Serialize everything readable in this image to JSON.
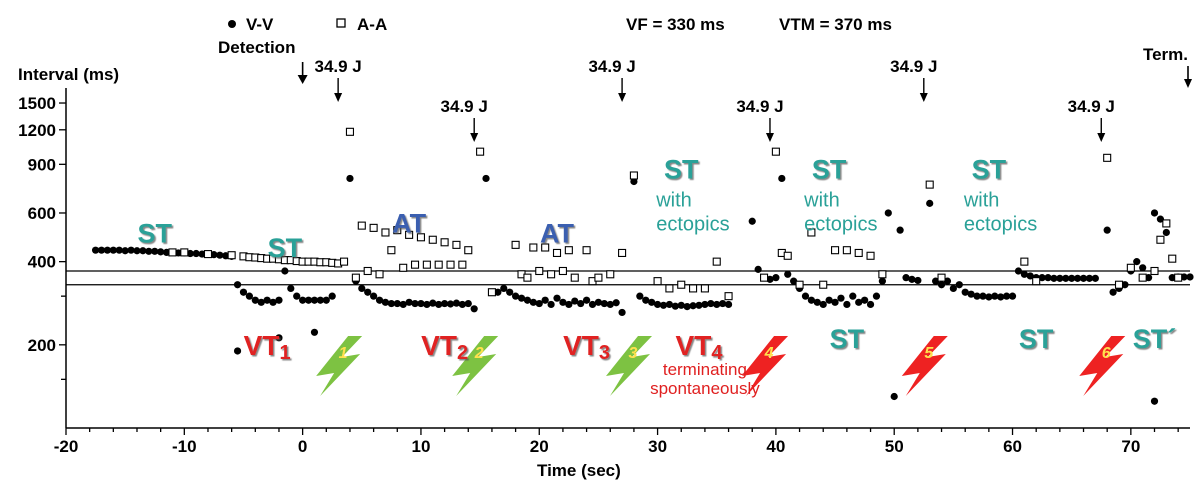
{
  "legend": {
    "vv": "V-V",
    "aa": "A-A",
    "detection": "Detection",
    "vf": "VF = 330 ms",
    "vtm": "VTM = 370 ms"
  },
  "chart_data": {
    "type": "scatter",
    "xlabel": "Time (sec)",
    "ylabel": "Interval (ms)",
    "xlim": [
      -20,
      75
    ],
    "ylim": [
      100,
      1700
    ],
    "y_scale": "log",
    "x_ticks": [
      -20,
      -10,
      0,
      10,
      20,
      30,
      40,
      50,
      60,
      70
    ],
    "y_ticks": [
      200,
      400,
      600,
      900,
      1200,
      1500
    ],
    "thresholds_ms": [
      330,
      370
    ],
    "term_label": "Term.",
    "shocks": [
      {
        "x": 3,
        "label": "34.9 J"
      },
      {
        "x": 14.5,
        "label": "34.9 J"
      },
      {
        "x": 27,
        "label": "34.9 J"
      },
      {
        "x": 39.5,
        "label": "34.9 J"
      },
      {
        "x": 52.5,
        "label": "34.9 J"
      },
      {
        "x": 67.5,
        "label": "34.9 J"
      }
    ],
    "rhythm_labels": [
      {
        "text": "ST",
        "x": -12.5,
        "y": 470,
        "color": "#2aa198"
      },
      {
        "text": "ST",
        "x": -1.5,
        "y": 415,
        "color": "#2aa198"
      },
      {
        "text": "AT",
        "x": 9,
        "y": 510,
        "color": "#3a5fb0"
      },
      {
        "text": "AT",
        "x": 21.5,
        "y": 470,
        "color": "#3a5fb0"
      },
      {
        "text": "ST",
        "x": 32,
        "y": 800,
        "color": "#2aa198"
      },
      {
        "text": "ST",
        "x": 44.5,
        "y": 800,
        "color": "#2aa198"
      },
      {
        "text": "ST",
        "x": 58,
        "y": 800,
        "color": "#2aa198"
      },
      {
        "text": "ST",
        "x": 46,
        "y": 195,
        "color": "#2aa198"
      },
      {
        "text": "ST",
        "x": 62,
        "y": 195,
        "color": "#2aa198"
      },
      {
        "text": "ST´",
        "x": 72,
        "y": 195,
        "color": "#2aa198"
      }
    ],
    "ectopic_labels": [
      {
        "x": 32,
        "lines": [
          "with",
          "ectopics"
        ]
      },
      {
        "x": 44.5,
        "lines": [
          "with",
          "ectopics"
        ]
      },
      {
        "x": 58,
        "lines": [
          "with",
          "ectopics"
        ]
      }
    ],
    "vt_labels": [
      {
        "text": "VT",
        "sub": "1",
        "x": -3
      },
      {
        "text": "VT",
        "sub": "2",
        "x": 12
      },
      {
        "text": "VT",
        "sub": "3",
        "x": 24
      },
      {
        "text": "VT",
        "sub": "4",
        "x": 33.5
      }
    ],
    "terminating_note": [
      "terminating",
      "spontaneously"
    ],
    "bolts": [
      {
        "x": 3,
        "label": "1",
        "color": "#7dc242"
      },
      {
        "x": 14.5,
        "label": "2",
        "color": "#7dc242"
      },
      {
        "x": 27.5,
        "label": "3",
        "color": "#7dc242"
      },
      {
        "x": 39,
        "label": "4",
        "color": "#ee2222"
      },
      {
        "x": 52.5,
        "label": "5",
        "color": "#ee2222"
      },
      {
        "x": 67.5,
        "label": "6",
        "color": "#ee2222"
      }
    ],
    "series": [
      {
        "name": "V-V",
        "marker": "filled-circle",
        "points": [
          [
            -17.5,
            440
          ],
          [
            -17,
            440
          ],
          [
            -16.5,
            440
          ],
          [
            -16,
            440
          ],
          [
            -15.5,
            440
          ],
          [
            -15,
            438
          ],
          [
            -14.5,
            440
          ],
          [
            -14,
            438
          ],
          [
            -13.5,
            438
          ],
          [
            -13,
            436
          ],
          [
            -12.5,
            436
          ],
          [
            -12,
            434
          ],
          [
            -11.5,
            432
          ],
          [
            -11,
            432
          ],
          [
            -10.5,
            430
          ],
          [
            -10,
            430
          ],
          [
            -9.5,
            428
          ],
          [
            -9,
            428
          ],
          [
            -8.5,
            426
          ],
          [
            -8,
            426
          ],
          [
            -7.5,
            424
          ],
          [
            -7,
            422
          ],
          [
            -6.5,
            420
          ],
          [
            -6,
            418
          ],
          [
            -5.5,
            330
          ],
          [
            -5,
            310
          ],
          [
            -4.5,
            300
          ],
          [
            -4,
            290
          ],
          [
            -3.5,
            285
          ],
          [
            -3,
            290
          ],
          [
            -2.5,
            285
          ],
          [
            -2,
            290
          ],
          [
            -1.5,
            370
          ],
          [
            -1,
            320
          ],
          [
            -0.5,
            300
          ],
          [
            0,
            290
          ],
          [
            0.5,
            290
          ],
          [
            1,
            290
          ],
          [
            1.5,
            290
          ],
          [
            2,
            290
          ],
          [
            2.5,
            300
          ],
          [
            -5.5,
            190
          ],
          [
            -2,
            212
          ],
          [
            1,
            222
          ],
          [
            4,
            800
          ],
          [
            4.5,
            340
          ],
          [
            5,
            320
          ],
          [
            5.5,
            310
          ],
          [
            6,
            300
          ],
          [
            6.5,
            290
          ],
          [
            7,
            285
          ],
          [
            7.5,
            282
          ],
          [
            8,
            282
          ],
          [
            8.5,
            280
          ],
          [
            9,
            285
          ],
          [
            9.5,
            282
          ],
          [
            10,
            282
          ],
          [
            10.5,
            280
          ],
          [
            11,
            283
          ],
          [
            11.5,
            280
          ],
          [
            12,
            282
          ],
          [
            12.5,
            281
          ],
          [
            13,
            283
          ],
          [
            13.5,
            280
          ],
          [
            14,
            282
          ],
          [
            14.5,
            270
          ],
          [
            15.5,
            800
          ],
          [
            16.5,
            310
          ],
          [
            17,
            320
          ],
          [
            17.5,
            310
          ],
          [
            18,
            300
          ],
          [
            18.5,
            295
          ],
          [
            19,
            290
          ],
          [
            19.5,
            285
          ],
          [
            20,
            282
          ],
          [
            20.5,
            290
          ],
          [
            21,
            280
          ],
          [
            21.5,
            295
          ],
          [
            22,
            285
          ],
          [
            22.5,
            280
          ],
          [
            23,
            288
          ],
          [
            23.5,
            282
          ],
          [
            24,
            290
          ],
          [
            24.5,
            280
          ],
          [
            25,
            285
          ],
          [
            25.5,
            282
          ],
          [
            26,
            280
          ],
          [
            26.5,
            284
          ],
          [
            27,
            262
          ],
          [
            28,
            780
          ],
          [
            28.5,
            300
          ],
          [
            29,
            290
          ],
          [
            29.5,
            285
          ],
          [
            30,
            280
          ],
          [
            30.5,
            278
          ],
          [
            31,
            280
          ],
          [
            31.5,
            276
          ],
          [
            32,
            278
          ],
          [
            32.5,
            275
          ],
          [
            33,
            277
          ],
          [
            33.5,
            278
          ],
          [
            34,
            280
          ],
          [
            34.5,
            282
          ],
          [
            35,
            280
          ],
          [
            35.5,
            282
          ],
          [
            36,
            280
          ],
          [
            38,
            560
          ],
          [
            38.5,
            375
          ],
          [
            39,
            350
          ],
          [
            39.5,
            345
          ],
          [
            40,
            350
          ],
          [
            40.5,
            800
          ],
          [
            41,
            360
          ],
          [
            41.5,
            340
          ],
          [
            42,
            320
          ],
          [
            42.5,
            300
          ],
          [
            43,
            290
          ],
          [
            43.5,
            285
          ],
          [
            44,
            280
          ],
          [
            44.5,
            290
          ],
          [
            45,
            285
          ],
          [
            45.5,
            295
          ],
          [
            46,
            280
          ],
          [
            46.5,
            300
          ],
          [
            47,
            285
          ],
          [
            47.5,
            290
          ],
          [
            48,
            280
          ],
          [
            48.5,
            300
          ],
          [
            49,
            340
          ],
          [
            49.5,
            600
          ],
          [
            50,
            130
          ],
          [
            50.5,
            520
          ],
          [
            51,
            350
          ],
          [
            51.5,
            345
          ],
          [
            52,
            342
          ],
          [
            53,
            650
          ],
          [
            53.5,
            340
          ],
          [
            54,
            330
          ],
          [
            54.5,
            340
          ],
          [
            55,
            320
          ],
          [
            55.5,
            330
          ],
          [
            56,
            310
          ],
          [
            56.5,
            305
          ],
          [
            57,
            300
          ],
          [
            57.5,
            300
          ],
          [
            58,
            298
          ],
          [
            58.5,
            300
          ],
          [
            59,
            298
          ],
          [
            59.5,
            300
          ],
          [
            60,
            300
          ],
          [
            60.5,
            370
          ],
          [
            61,
            360
          ],
          [
            61.5,
            355
          ],
          [
            62,
            350
          ],
          [
            62.5,
            350
          ],
          [
            63,
            350
          ],
          [
            63.5,
            348
          ],
          [
            64,
            348
          ],
          [
            64.5,
            348
          ],
          [
            65,
            348
          ],
          [
            65.5,
            348
          ],
          [
            66,
            348
          ],
          [
            66.5,
            348
          ],
          [
            67,
            348
          ],
          [
            68,
            520
          ],
          [
            68.5,
            310
          ],
          [
            69,
            320
          ],
          [
            69.5,
            330
          ],
          [
            70,
            370
          ],
          [
            70.5,
            400
          ],
          [
            71,
            380
          ],
          [
            71.5,
            350
          ],
          [
            72,
            600
          ],
          [
            72.5,
            570
          ],
          [
            73,
            510
          ],
          [
            72,
            125
          ],
          [
            73.5,
            350
          ],
          [
            74,
            352
          ],
          [
            74.5,
            352
          ],
          [
            75,
            352
          ]
        ]
      },
      {
        "name": "A-A",
        "marker": "open-square",
        "points": [
          [
            -11,
            432
          ],
          [
            -10,
            432
          ],
          [
            -8,
            426
          ],
          [
            -6,
            422
          ],
          [
            -5,
            418
          ],
          [
            -4.5,
            415
          ],
          [
            -4,
            414
          ],
          [
            -3.5,
            412
          ],
          [
            -3,
            410
          ],
          [
            -2.5,
            410
          ],
          [
            -2,
            408
          ],
          [
            -1.5,
            405
          ],
          [
            -1,
            405
          ],
          [
            -0.5,
            402
          ],
          [
            0,
            400
          ],
          [
            0.5,
            400
          ],
          [
            1,
            400
          ],
          [
            1.5,
            398
          ],
          [
            2,
            398
          ],
          [
            2.5,
            396
          ],
          [
            3,
            394
          ],
          [
            3.5,
            400
          ],
          [
            4,
            1180
          ],
          [
            4.5,
            350
          ],
          [
            5,
            540
          ],
          [
            5.5,
            370
          ],
          [
            6,
            530
          ],
          [
            6.5,
            360
          ],
          [
            7,
            510
          ],
          [
            7.5,
            440
          ],
          [
            8,
            520
          ],
          [
            8.5,
            380
          ],
          [
            9,
            500
          ],
          [
            9.5,
            390
          ],
          [
            10,
            490
          ],
          [
            10.5,
            390
          ],
          [
            11,
            480
          ],
          [
            11.5,
            390
          ],
          [
            12,
            470
          ],
          [
            12.5,
            390
          ],
          [
            13,
            460
          ],
          [
            13.5,
            390
          ],
          [
            14,
            440
          ],
          [
            15,
            1000
          ],
          [
            16,
            310
          ],
          [
            18,
            460
          ],
          [
            18.5,
            360
          ],
          [
            19,
            350
          ],
          [
            19.5,
            450
          ],
          [
            20,
            370
          ],
          [
            20.5,
            450
          ],
          [
            21,
            360
          ],
          [
            21.5,
            430
          ],
          [
            22,
            370
          ],
          [
            22.5,
            440
          ],
          [
            23,
            350
          ],
          [
            24,
            440
          ],
          [
            24.5,
            340
          ],
          [
            25,
            350
          ],
          [
            26,
            360
          ],
          [
            27,
            430
          ],
          [
            28,
            820
          ],
          [
            30,
            340
          ],
          [
            31,
            320
          ],
          [
            32,
            330
          ],
          [
            33,
            320
          ],
          [
            34,
            320
          ],
          [
            35,
            400
          ],
          [
            36,
            300
          ],
          [
            39,
            350
          ],
          [
            40,
            1000
          ],
          [
            40.5,
            430
          ],
          [
            41,
            420
          ],
          [
            42,
            330
          ],
          [
            43,
            510
          ],
          [
            44,
            330
          ],
          [
            45,
            440
          ],
          [
            46,
            440
          ],
          [
            47,
            430
          ],
          [
            48,
            420
          ],
          [
            49,
            360
          ],
          [
            53,
            760
          ],
          [
            54,
            350
          ],
          [
            61,
            400
          ],
          [
            62,
            340
          ],
          [
            68,
            950
          ],
          [
            69,
            330
          ],
          [
            70,
            380
          ],
          [
            71,
            350
          ],
          [
            72,
            370
          ],
          [
            72.5,
            480
          ],
          [
            73,
            550
          ],
          [
            73.5,
            410
          ],
          [
            74,
            350
          ]
        ]
      }
    ]
  }
}
